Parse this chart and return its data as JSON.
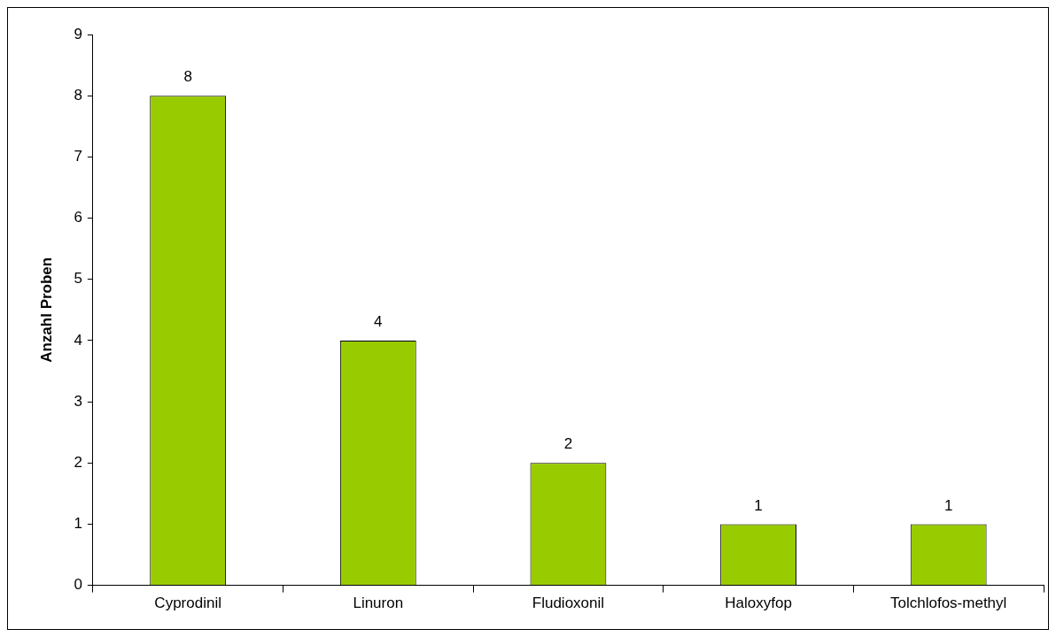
{
  "chart_data": {
    "type": "bar",
    "ylabel": "Anzahl Proben",
    "categories": [
      "Cyprodinil",
      "Linuron",
      "Fludioxonil",
      "Haloxyfop",
      "Tolchlofos-methyl"
    ],
    "values": [
      8,
      4,
      2,
      1,
      1
    ],
    "color": "#99cc00",
    "ylim": [
      0,
      9
    ],
    "yticks": [
      0,
      1,
      2,
      3,
      4,
      5,
      6,
      7,
      8,
      9
    ],
    "grid": false,
    "data_labels": true
  }
}
